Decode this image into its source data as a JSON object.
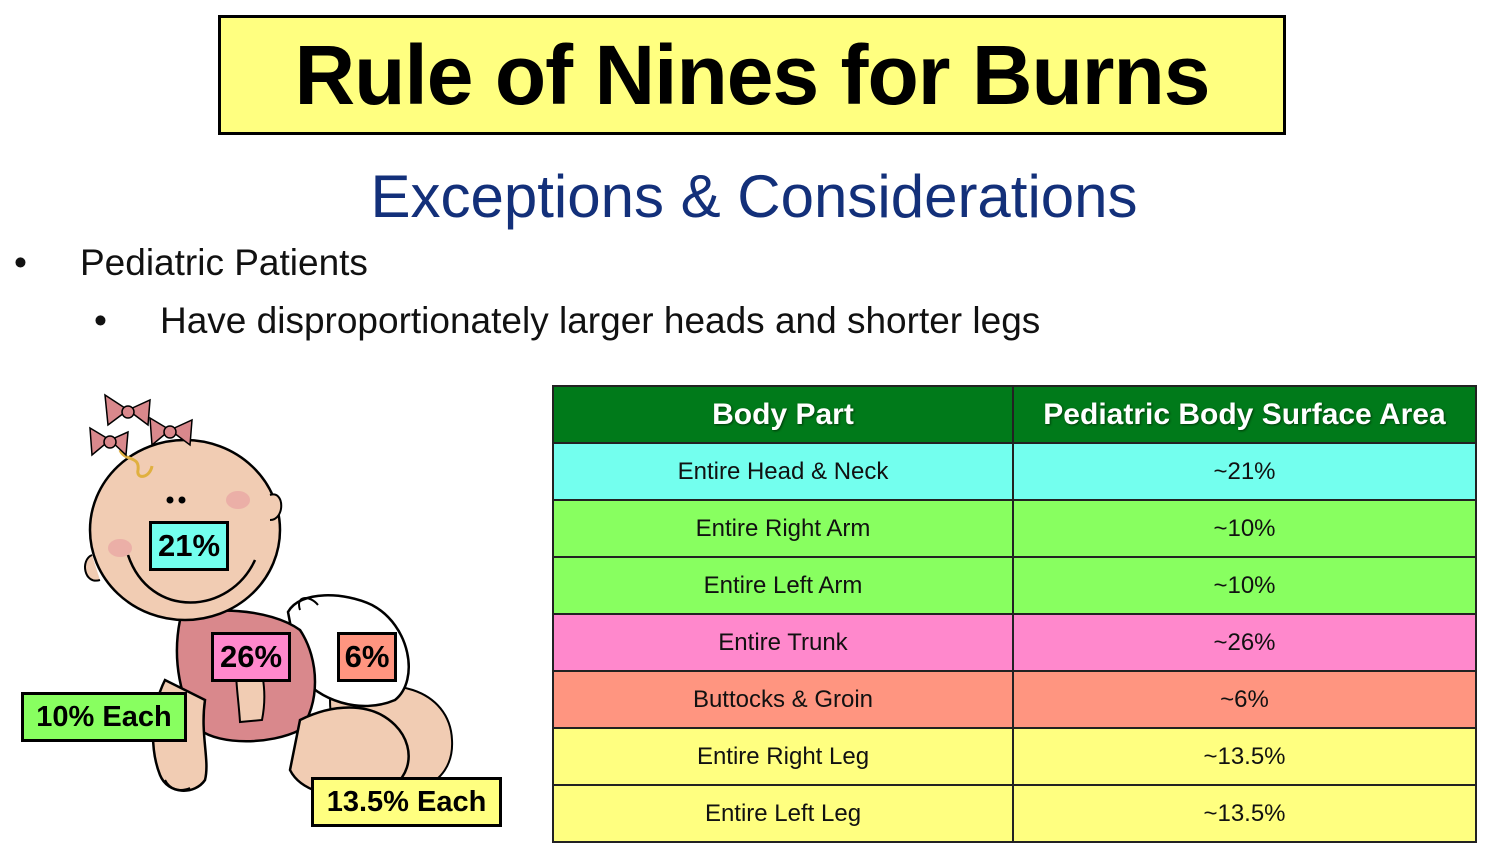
{
  "title": "Rule of Nines for Burns",
  "subtitle": "Exceptions & Considerations",
  "bullets": {
    "level1": {
      "marker": "•",
      "text": "Pediatric Patients"
    },
    "level2": {
      "marker": "•",
      "text": "Have disproportionately larger heads and shorter legs"
    }
  },
  "figure_labels": {
    "head": "21%",
    "trunk": "26%",
    "groin": "6%",
    "arms": "10% Each",
    "legs": "13.5% Each"
  },
  "table": {
    "headers": [
      "Body Part",
      "Pediatric Body Surface Area"
    ],
    "rows": [
      {
        "part": "Entire Head & Neck",
        "area": "~21%",
        "color": "#73ffee"
      },
      {
        "part": "Entire Right Arm",
        "area": "~10%",
        "color": "#88ff60"
      },
      {
        "part": "Entire Left Arm",
        "area": "~10%",
        "color": "#88ff60"
      },
      {
        "part": "Entire Trunk",
        "area": "~26%",
        "color": "#ff88cc"
      },
      {
        "part": "Buttocks & Groin",
        "area": "~6%",
        "color": "#ff9580"
      },
      {
        "part": "Entire Right Leg",
        "area": "~13.5%",
        "color": "#ffff80"
      },
      {
        "part": "Entire Left Leg",
        "area": "~13.5%",
        "color": "#ffff80"
      }
    ]
  },
  "colors": {
    "title_bg": "#ffff80",
    "subtitle": "#13307a",
    "header_bg": "#007a1a"
  }
}
